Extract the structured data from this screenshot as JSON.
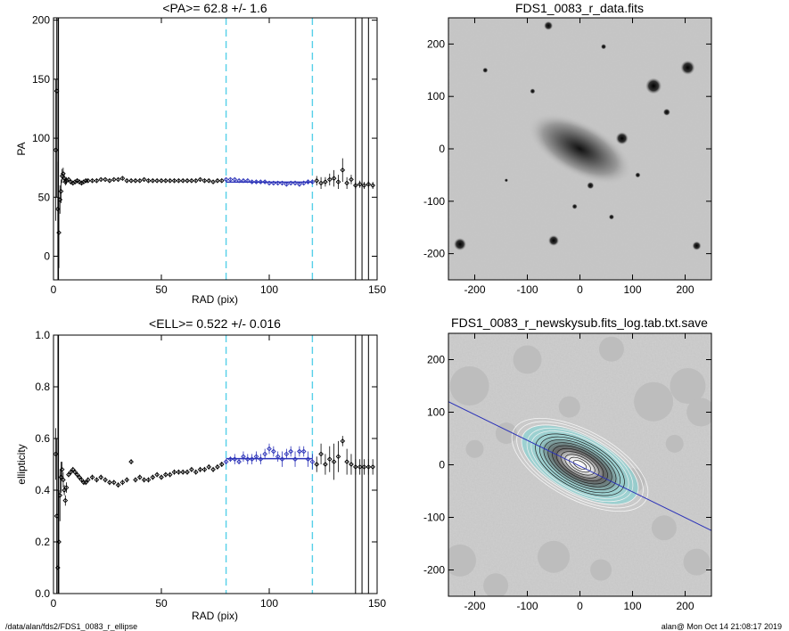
{
  "chart_data": [
    {
      "type": "scatter",
      "title": "<PA>=  62.8 +/-   1.6",
      "xlabel": "RAD (pix)",
      "ylabel": "PA",
      "xlim": [
        0,
        150
      ],
      "ylim": [
        -20,
        202
      ],
      "xticks": [
        0,
        50,
        100,
        150
      ],
      "yticks": [
        0,
        50,
        100,
        150,
        200
      ],
      "fit_range": [
        80,
        120
      ],
      "fit_value": 62.8,
      "fit_sigma": 1.6,
      "vertical_lines": [
        140,
        143,
        146
      ],
      "series": [
        {
          "x": [
            1,
            1.5,
            2,
            2.5,
            3,
            3.5,
            4,
            4.5,
            5,
            5.5,
            6,
            7,
            8,
            9,
            10,
            11,
            12,
            13,
            14,
            15,
            16,
            18,
            20,
            22,
            24,
            26,
            28,
            30,
            32,
            34,
            36,
            38,
            40,
            42,
            44,
            46,
            48,
            50,
            52,
            54,
            56,
            58,
            60,
            62,
            64,
            66,
            68,
            70,
            72,
            74,
            76,
            78
          ],
          "y": [
            90,
            140,
            40,
            20,
            48,
            55,
            68,
            70,
            66,
            63,
            64,
            65,
            63,
            62,
            63,
            64,
            63,
            62,
            63,
            64,
            64,
            64,
            64,
            65,
            65,
            64,
            65,
            65,
            66,
            64,
            64,
            64,
            64,
            65,
            64,
            64,
            64,
            64,
            64,
            64,
            64,
            64,
            64,
            64,
            64,
            64,
            65,
            64,
            64,
            63,
            64,
            64
          ],
          "err": [
            60,
            90,
            40,
            30,
            12,
            10,
            6,
            5,
            4,
            3,
            3,
            2,
            2,
            2,
            2,
            2,
            2,
            2,
            1,
            1,
            1,
            1,
            1,
            1,
            1,
            1,
            1,
            1,
            1,
            1,
            1,
            1,
            1,
            1,
            1,
            1,
            1,
            1,
            1,
            1,
            1,
            1,
            1,
            1,
            1,
            1,
            1,
            1,
            1,
            1,
            1,
            1
          ]
        },
        {
          "x": [
            80,
            82,
            84,
            86,
            88,
            90,
            92,
            94,
            96,
            98,
            100,
            102,
            104,
            106,
            108,
            110,
            112,
            114,
            116,
            118,
            120
          ],
          "y": [
            65,
            65,
            65,
            64,
            64,
            64,
            63,
            63,
            63,
            63,
            62,
            62,
            62,
            62,
            61,
            62,
            62,
            61,
            62,
            63,
            63
          ],
          "err": [
            1,
            1,
            1,
            1,
            1,
            1,
            1,
            1,
            1,
            1,
            1.5,
            1.5,
            1.5,
            1.5,
            1.5,
            1.5,
            2,
            2,
            2,
            2,
            2
          ]
        },
        {
          "x": [
            122,
            124,
            126,
            128,
            130,
            132,
            134,
            136,
            138,
            140,
            142,
            144,
            146,
            148
          ],
          "y": [
            64,
            62,
            63,
            65,
            66,
            63,
            73,
            62,
            65,
            60,
            61,
            60,
            61,
            60
          ],
          "err": [
            4,
            5,
            4,
            5,
            7,
            6,
            10,
            5,
            4,
            3,
            3,
            3,
            3,
            3
          ]
        }
      ]
    },
    {
      "type": "heatmap",
      "title": "FDS1_0083_r_data.fits",
      "xlim": [
        -250,
        250
      ],
      "ylim": [
        -250,
        250
      ],
      "xticks": [
        -200,
        -100,
        0,
        100,
        200
      ],
      "yticks": [
        -200,
        -100,
        0,
        100,
        200
      ]
    },
    {
      "type": "scatter",
      "title": "<ELL>= 0.522 +/-  0.016",
      "xlabel": "RAD (pix)",
      "ylabel": "ellipticity",
      "xlim": [
        0,
        150
      ],
      "ylim": [
        0,
        1.0
      ],
      "xticks": [
        0,
        50,
        100,
        150
      ],
      "yticks": [
        0.0,
        0.2,
        0.4,
        0.6,
        0.8,
        1.0
      ],
      "fit_range": [
        80,
        120
      ],
      "fit_value": 0.522,
      "fit_sigma": 0.016,
      "vertical_lines": [
        140,
        143,
        146
      ],
      "series": [
        {
          "x": [
            1,
            1.5,
            2,
            2.5,
            3,
            3.5,
            4,
            4.5,
            5,
            5.5,
            6,
            7,
            8,
            9,
            10,
            11,
            12,
            13,
            14,
            15,
            16,
            18,
            20,
            22,
            24,
            26,
            28,
            30,
            32,
            34,
            36,
            38,
            40,
            42,
            44,
            46,
            48,
            50,
            52,
            54,
            56,
            58,
            60,
            62,
            64,
            66,
            68,
            70,
            72,
            74,
            76,
            78
          ],
          "y": [
            0.54,
            0.3,
            0.1,
            0.2,
            0.38,
            0.45,
            0.48,
            0.44,
            0.4,
            0.36,
            0.41,
            0.46,
            0.47,
            0.48,
            0.47,
            0.46,
            0.45,
            0.44,
            0.43,
            0.43,
            0.44,
            0.45,
            0.44,
            0.45,
            0.44,
            0.43,
            0.43,
            0.42,
            0.43,
            0.44,
            0.51,
            0.44,
            0.45,
            0.44,
            0.44,
            0.45,
            0.46,
            0.45,
            0.46,
            0.46,
            0.47,
            0.47,
            0.47,
            0.47,
            0.48,
            0.47,
            0.48,
            0.48,
            0.49,
            0.48,
            0.49,
            0.5
          ],
          "err": [
            0.1,
            0.3,
            0.3,
            0.2,
            0.1,
            0.06,
            0.03,
            0.03,
            0.02,
            0.02,
            0.02,
            0.01,
            0.01,
            0.01,
            0.01,
            0.01,
            0.01,
            0.01,
            0.01,
            0.01,
            0.01,
            0.01,
            0.01,
            0.01,
            0.01,
            0.01,
            0.01,
            0.01,
            0.01,
            0.01,
            0.01,
            0.01,
            0.01,
            0.01,
            0.01,
            0.01,
            0.01,
            0.01,
            0.01,
            0.01,
            0.01,
            0.01,
            0.01,
            0.01,
            0.01,
            0.01,
            0.01,
            0.01,
            0.01,
            0.01,
            0.01,
            0.01
          ]
        },
        {
          "x": [
            80,
            82,
            84,
            86,
            88,
            90,
            92,
            94,
            96,
            98,
            100,
            102,
            104,
            106,
            108,
            110,
            112,
            114,
            116,
            118,
            120
          ],
          "y": [
            0.51,
            0.52,
            0.52,
            0.51,
            0.53,
            0.52,
            0.52,
            0.53,
            0.52,
            0.54,
            0.56,
            0.55,
            0.53,
            0.52,
            0.54,
            0.55,
            0.52,
            0.55,
            0.55,
            0.52,
            0.51
          ],
          "err": [
            0.01,
            0.01,
            0.02,
            0.01,
            0.02,
            0.02,
            0.02,
            0.02,
            0.02,
            0.02,
            0.02,
            0.02,
            0.02,
            0.03,
            0.02,
            0.02,
            0.03,
            0.02,
            0.02,
            0.03,
            0.03
          ]
        },
        {
          "x": [
            122,
            124,
            126,
            128,
            130,
            132,
            134,
            136,
            138,
            140,
            142,
            144,
            146,
            148
          ],
          "y": [
            0.5,
            0.54,
            0.5,
            0.52,
            0.51,
            0.53,
            0.59,
            0.51,
            0.5,
            0.49,
            0.49,
            0.49,
            0.49,
            0.49
          ],
          "err": [
            0.03,
            0.04,
            0.04,
            0.05,
            0.07,
            0.06,
            0.02,
            0.05,
            0.04,
            0.03,
            0.03,
            0.03,
            0.03,
            0.03
          ]
        }
      ]
    },
    {
      "type": "heatmap",
      "title": "FDS1_0083_r_newskysub.fits_log.tab.txt.save",
      "xlim": [
        -250,
        250
      ],
      "ylim": [
        -250,
        250
      ],
      "xticks": [
        -200,
        -100,
        0,
        100,
        200
      ],
      "yticks": [
        -200,
        -100,
        0,
        100,
        200
      ]
    }
  ],
  "footer": {
    "left": "/data/alan/fds2/FDS1_0083_r_ellipse",
    "right": "alan@  Mon Oct 14 21:08:17 2019"
  }
}
